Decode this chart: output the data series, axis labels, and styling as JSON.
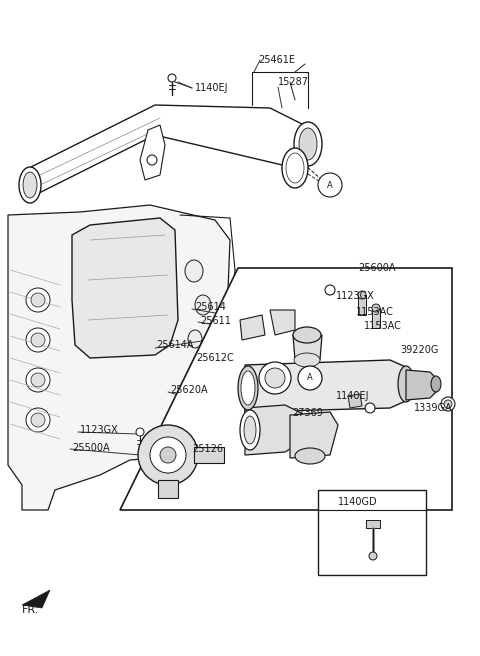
{
  "bg": "#ffffff",
  "lc": "#1a1a1a",
  "fig_w": 4.8,
  "fig_h": 6.56,
  "dpi": 100,
  "labels": [
    [
      "1140EJ",
      195,
      88,
      "left",
      7
    ],
    [
      "25461E",
      258,
      60,
      "left",
      7
    ],
    [
      "15287",
      278,
      82,
      "left",
      7
    ],
    [
      "25600A",
      358,
      268,
      "left",
      7
    ],
    [
      "1123GX",
      336,
      296,
      "left",
      7
    ],
    [
      "1153AC",
      356,
      312,
      "left",
      7
    ],
    [
      "1153AC",
      364,
      326,
      "left",
      7
    ],
    [
      "25614",
      195,
      307,
      "left",
      7
    ],
    [
      "25611",
      200,
      321,
      "left",
      7
    ],
    [
      "25614A",
      156,
      345,
      "left",
      7
    ],
    [
      "25612C",
      196,
      358,
      "left",
      7
    ],
    [
      "39220G",
      400,
      350,
      "left",
      7
    ],
    [
      "25620A",
      170,
      390,
      "left",
      7
    ],
    [
      "1140EJ",
      336,
      396,
      "left",
      7
    ],
    [
      "27369",
      292,
      413,
      "left",
      7
    ],
    [
      "1339GA",
      414,
      408,
      "left",
      7
    ],
    [
      "1123GX",
      80,
      430,
      "left",
      7
    ],
    [
      "25500A",
      72,
      448,
      "left",
      7
    ],
    [
      "25126",
      192,
      449,
      "left",
      7
    ],
    [
      "1140GD",
      358,
      502,
      "center",
      7
    ],
    [
      "FR.",
      22,
      610,
      "left",
      8
    ]
  ]
}
